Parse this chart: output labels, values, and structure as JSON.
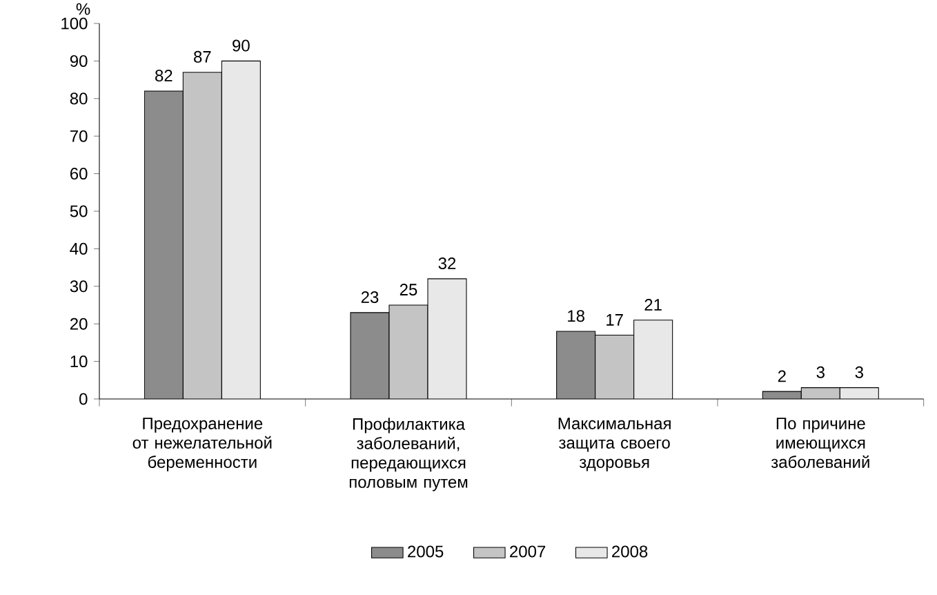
{
  "chart_data": {
    "type": "bar",
    "ylabel": "%",
    "categories": [
      "Предохранение от нежелательной беременности",
      "Профилактика заболеваний, передающихся половым путем",
      "Максимальная защита своего здоровья",
      "По причине имеющихся заболеваний"
    ],
    "series": [
      {
        "name": "2005",
        "color": "#8c8c8c",
        "values": [
          82,
          23,
          18,
          2
        ]
      },
      {
        "name": "2007",
        "color": "#c4c4c4",
        "values": [
          87,
          25,
          17,
          3
        ]
      },
      {
        "name": "2008",
        "color": "#e8e8e8",
        "values": [
          90,
          32,
          21,
          3
        ]
      }
    ],
    "ylim": [
      0,
      100
    ],
    "yticks": [
      0,
      10,
      20,
      30,
      40,
      50,
      60,
      70,
      80,
      90,
      100
    ],
    "data_labels": true,
    "legend": "bottom",
    "grid": false
  }
}
